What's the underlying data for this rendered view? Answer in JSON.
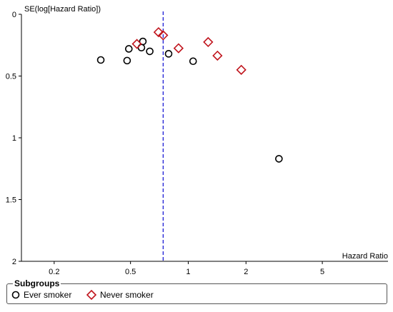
{
  "chart_data": {
    "type": "scatter",
    "title": "",
    "ylabel": "SE(log[Hazard Ratio])",
    "xlabel": "Hazard Ratio",
    "x_scale": "log",
    "xlim": [
      0.135,
      11
    ],
    "ylim": [
      0,
      2
    ],
    "y_inverted": true,
    "x_ticks": [
      0.2,
      0.5,
      1,
      2,
      5
    ],
    "x_tick_labels": [
      "0.2",
      "0.5",
      "1",
      "2",
      "5"
    ],
    "y_ticks": [
      0,
      0.5,
      1,
      1.5,
      2
    ],
    "y_tick_labels": [
      "0",
      "0.5",
      "1",
      "1.5",
      "2"
    ],
    "reference_line": {
      "x": 0.74,
      "style": "dashed",
      "color": "#1f1fd6"
    },
    "series": [
      {
        "name": "Ever smoker",
        "marker": "circle",
        "color": "#000000",
        "points": [
          {
            "x": 0.35,
            "y": 0.37
          },
          {
            "x": 0.48,
            "y": 0.375
          },
          {
            "x": 0.49,
            "y": 0.28
          },
          {
            "x": 0.57,
            "y": 0.27
          },
          {
            "x": 0.58,
            "y": 0.22
          },
          {
            "x": 0.63,
            "y": 0.3
          },
          {
            "x": 0.79,
            "y": 0.32
          },
          {
            "x": 1.06,
            "y": 0.38
          },
          {
            "x": 2.97,
            "y": 1.17
          }
        ]
      },
      {
        "name": "Never smoker",
        "marker": "diamond",
        "color": "#c0141c",
        "points": [
          {
            "x": 0.54,
            "y": 0.24
          },
          {
            "x": 0.7,
            "y": 0.145
          },
          {
            "x": 0.74,
            "y": 0.17
          },
          {
            "x": 0.89,
            "y": 0.275
          },
          {
            "x": 1.27,
            "y": 0.225
          },
          {
            "x": 1.42,
            "y": 0.335
          },
          {
            "x": 1.89,
            "y": 0.45
          }
        ]
      }
    ],
    "legend": {
      "title": "Subgroups",
      "position": "bottom"
    }
  }
}
